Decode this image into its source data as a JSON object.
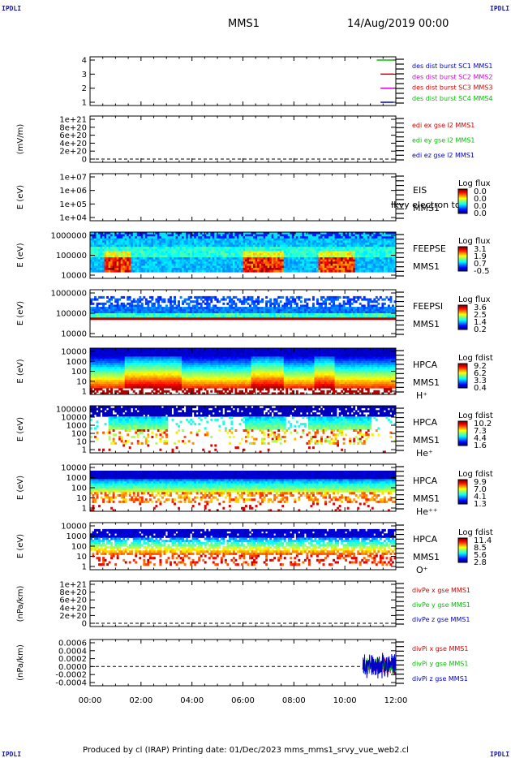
{
  "header": {
    "corner_left_top": "IPDLI",
    "corner_right_top": "IPDLI",
    "corner_left_bottom": "IPDLI",
    "corner_right_bottom": "IPDLI",
    "title": "MMS1",
    "date": "14/Aug/2019 00:00"
  },
  "footer": {
    "text": "Produced by cl (IRAP)   Printing date: 01/Dec/2023   mms_mms1_srvy_vue_web2.cl"
  },
  "colors": {
    "blue": "#0000c8",
    "red": "#d40000",
    "green": "#00c000",
    "magenta": "#d000d0"
  },
  "chart_data": {
    "type": "stacked-panel time-series",
    "x": {
      "ticks": [
        "00:00",
        "02:00",
        "04:00",
        "06:00",
        "08:00",
        "10:00",
        "12:00"
      ],
      "range_hours": [
        0,
        12
      ]
    },
    "panels": [
      {
        "id": "burst",
        "ylabel": "",
        "yticks": [
          "4",
          "3",
          "2",
          "1"
        ],
        "legend": [
          {
            "text": "des dist burst SC1 MMS1",
            "color": "#0000c8"
          },
          {
            "text": "des dist burst SC2 MMS2",
            "color": "#d000d0"
          },
          {
            "text": "des dist burst SC3 MMS3",
            "color": "#d40000"
          },
          {
            "text": "des dist burst SC4 MMS4",
            "color": "#00c000"
          }
        ],
        "segments": [
          {
            "level": 4,
            "x_start": 11.25,
            "x_end": 11.9,
            "color": "#00c000"
          },
          {
            "level": 3,
            "x_start": 11.4,
            "x_end": 11.9,
            "color": "#d40000"
          },
          {
            "level": 2,
            "x_start": 11.4,
            "x_end": 11.9,
            "color": "#d000d0"
          },
          {
            "level": 1,
            "x_start": 11.4,
            "x_end": 11.9,
            "color": "#0000c8"
          }
        ]
      },
      {
        "id": "edi",
        "ylabel": "(mV/m)",
        "yticks": [
          "1e+21",
          "8e+20",
          "6e+20",
          "4e+20",
          "2e+20",
          "0"
        ],
        "dashed_zero": true,
        "legend": [
          {
            "text": "edi ex gse l2 MMS1",
            "color": "#d40000"
          },
          {
            "text": "edi ey gse l2 MMS1",
            "color": "#00c000"
          },
          {
            "text": "edi ez gse l2 MMS1",
            "color": "#0000c8"
          }
        ]
      },
      {
        "id": "eis",
        "ylabel": "E (eV)",
        "yticks": [
          "1e+07",
          "1e+06",
          "1e+05",
          "1e+04"
        ],
        "right_labels": [
          "EIS",
          "MMS1"
        ],
        "overlay_text": "Ikvy electron to",
        "colorbar": {
          "title": "Log flux",
          "values": [
            "0.0",
            "0.0",
            "0.0",
            "0.0"
          ]
        }
      },
      {
        "id": "feepse",
        "ylabel": "E (eV)",
        "yticks": [
          "1000000",
          "100000",
          "10000"
        ],
        "right_labels": [
          "FEEPSE",
          "MMS1"
        ],
        "colorbar": {
          "title": "Log flux",
          "values": [
            "3.1",
            "1.9",
            "0.7",
            "-0.5"
          ]
        },
        "hot_intervals_hours": [
          [
            0.6,
            1.6
          ],
          [
            6.0,
            7.6
          ],
          [
            9.0,
            10.4
          ]
        ]
      },
      {
        "id": "feepsi",
        "ylabel": "E (eV)",
        "yticks": [
          "1000000",
          "100000",
          "10000"
        ],
        "right_labels": [
          "FEEPSI",
          "MMS1"
        ],
        "colorbar": {
          "title": "Log flux",
          "values": [
            "3.6",
            "2.5",
            "1.4",
            "0.2"
          ]
        }
      },
      {
        "id": "hpca_h",
        "ylabel": "E (eV)",
        "yticks": [
          "10000",
          "1000",
          "100",
          "10",
          "1"
        ],
        "right_labels": [
          "HPCA",
          "MMS1",
          "H⁺"
        ],
        "colorbar": {
          "title": "Log fdist",
          "values": [
            "9.2",
            "6.2",
            "3.3",
            "0.4"
          ]
        },
        "hot_intervals_hours": [
          [
            1.4,
            3.6
          ],
          [
            6.3,
            7.6
          ],
          [
            8.8,
            9.6
          ]
        ]
      },
      {
        "id": "hpca_he",
        "ylabel": "E (eV)",
        "yticks": [
          "100000",
          "10000",
          "1000",
          "100",
          "10",
          "1"
        ],
        "right_labels": [
          "HPCA",
          "MMS1",
          "He⁺"
        ],
        "colorbar": {
          "title": "Log fdist",
          "values": [
            "10.2",
            "7.3",
            "4.4",
            "1.6"
          ]
        },
        "hot_intervals_hours": [
          [
            0.7,
            3.0
          ],
          [
            6.1,
            7.7
          ],
          [
            8.6,
            11.0
          ]
        ]
      },
      {
        "id": "hpca_he2",
        "ylabel": "E (eV)",
        "yticks": [
          "10000",
          "1000",
          "100",
          "10",
          "1"
        ],
        "right_labels": [
          "HPCA",
          "MMS1",
          "He⁺⁺"
        ],
        "colorbar": {
          "title": "Log fdist",
          "values": [
            "9.9",
            "7.0",
            "4.1",
            "1.3"
          ]
        }
      },
      {
        "id": "hpca_o",
        "ylabel": "E (eV)",
        "yticks": [
          "10000",
          "1000",
          "100",
          "10",
          "1"
        ],
        "right_labels": [
          "HPCA",
          "MMS1",
          "O⁺"
        ],
        "colorbar": {
          "title": "Log fdist",
          "values": [
            "11.4",
            "8.5",
            "5.6",
            "2.8"
          ]
        },
        "hot_intervals_hours": [
          [
            0.6,
            3.0
          ],
          [
            6.1,
            7.6
          ],
          [
            8.5,
            11.2
          ]
        ]
      },
      {
        "id": "divpe",
        "ylabel": "(nPa/km)",
        "yticks": [
          "1e+21",
          "8e+20",
          "6e+20",
          "4e+20",
          "2e+20",
          "0"
        ],
        "dashed_zero": true,
        "legend": [
          {
            "text": "divPe x gse MMS1",
            "color": "#d40000"
          },
          {
            "text": "divPe y gse MMS1",
            "color": "#00c000"
          },
          {
            "text": "divPe z gse MMS1",
            "color": "#0000c8"
          }
        ]
      },
      {
        "id": "divpi",
        "ylabel": "(nPa/km)",
        "yticks": [
          "0.0006",
          "0.0004",
          "0.0002",
          "0.0000",
          "-0.0002",
          "-0.0004"
        ],
        "yrange": [
          -0.0005,
          0.0007
        ],
        "dashed_zero": true,
        "data_interval_hours": [
          10.7,
          12.0
        ],
        "legend": [
          {
            "text": "divPi x gse MMS1",
            "color": "#d40000"
          },
          {
            "text": "divPi y gse MMS1",
            "color": "#00c000"
          },
          {
            "text": "divPi z gse MMS1",
            "color": "#0000c8"
          }
        ]
      }
    ]
  }
}
